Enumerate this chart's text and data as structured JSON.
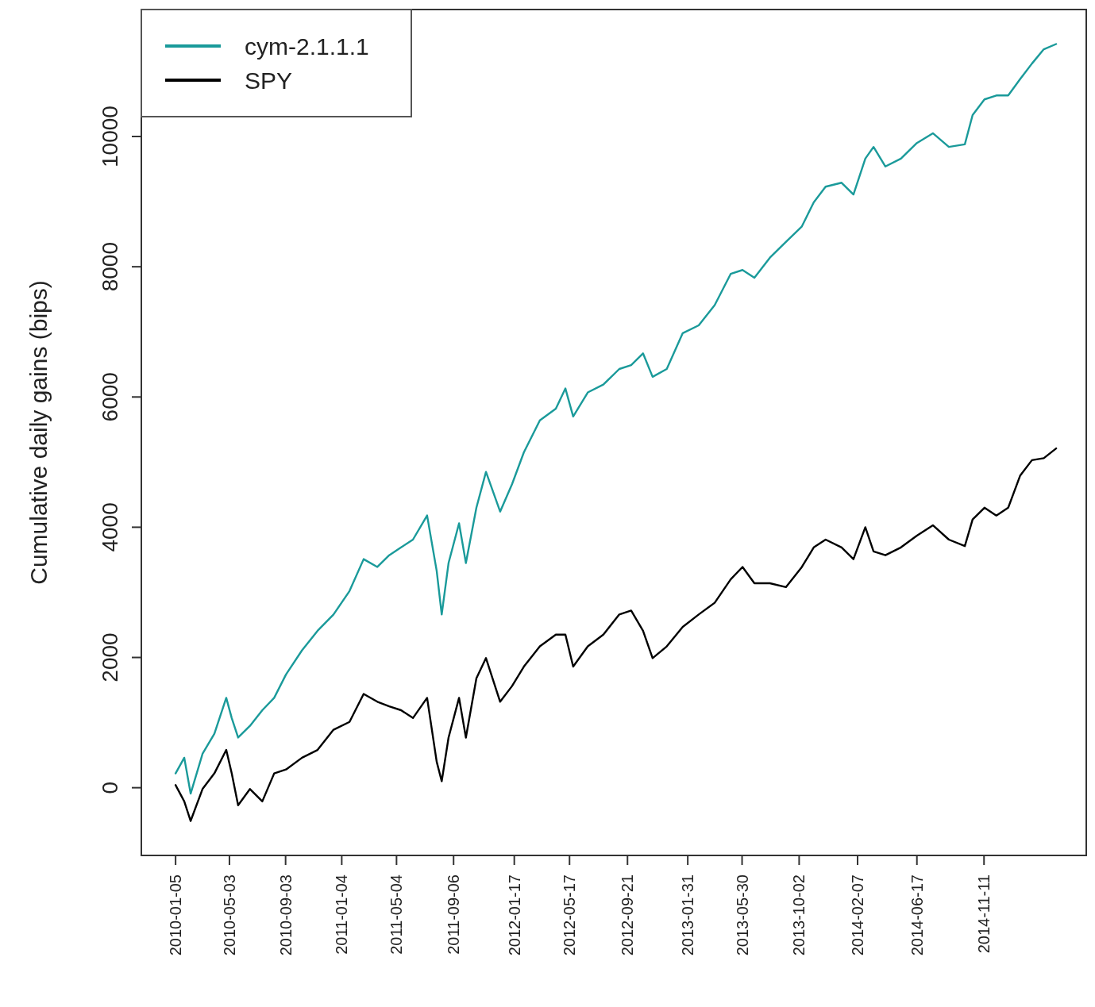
{
  "chart_data": {
    "type": "line",
    "ylabel": "Cumulative daily gains (bips)",
    "x": [
      "2010-01-05",
      "2010-01-24",
      "2010-02-07",
      "2010-03-05",
      "2010-03-31",
      "2010-04-26",
      "2010-05-08",
      "2010-05-22",
      "2010-06-17",
      "2010-07-14",
      "2010-08-09",
      "2010-09-04",
      "2010-10-09",
      "2010-11-12",
      "2010-12-17",
      "2011-01-21",
      "2011-02-21",
      "2011-03-23",
      "2011-04-18",
      "2011-05-14",
      "2011-06-09",
      "2011-07-10",
      "2011-07-31",
      "2011-08-11",
      "2011-08-26",
      "2011-09-18",
      "2011-10-03",
      "2011-10-26",
      "2011-11-16",
      "2011-12-17",
      "2012-01-12",
      "2012-02-07",
      "2012-03-13",
      "2012-04-17",
      "2012-05-08",
      "2012-05-25",
      "2012-06-26",
      "2012-07-30",
      "2012-09-03",
      "2012-09-29",
      "2012-10-25",
      "2012-11-15",
      "2012-12-16",
      "2013-01-20",
      "2013-02-24",
      "2013-03-31",
      "2013-05-05",
      "2013-05-31",
      "2013-06-26",
      "2013-07-30",
      "2013-09-03",
      "2013-10-08",
      "2013-11-03",
      "2013-11-29",
      "2014-01-03",
      "2014-01-29",
      "2014-02-24",
      "2014-03-14",
      "2014-04-09",
      "2014-05-13",
      "2014-06-17",
      "2014-07-22",
      "2014-08-26",
      "2014-09-30",
      "2014-10-17",
      "2014-11-12",
      "2014-12-08",
      "2015-01-03",
      "2015-01-29",
      "2015-02-24",
      "2015-03-22",
      "2015-04-18"
    ],
    "series": [
      {
        "name": "cym-2.1.1.1",
        "color": "#1a9a9a",
        "values": [
          220,
          460,
          -90,
          520,
          830,
          1380,
          1070,
          770,
          950,
          1190,
          1380,
          1740,
          2110,
          2410,
          2660,
          3020,
          3510,
          3390,
          3570,
          3690,
          3810,
          4180,
          3330,
          2660,
          3450,
          4060,
          3450,
          4300,
          4850,
          4240,
          4660,
          5150,
          5640,
          5820,
          6130,
          5700,
          6070,
          6190,
          6430,
          6490,
          6670,
          6310,
          6430,
          6980,
          7100,
          7410,
          7890,
          7950,
          7830,
          8140,
          8380,
          8620,
          8990,
          9230,
          9290,
          9110,
          9660,
          9840,
          9540,
          9660,
          9900,
          10050,
          9840,
          9880,
          10330,
          10570,
          10630,
          10630,
          10880,
          11120,
          11340,
          11420
        ]
      },
      {
        "name": "SPY",
        "color": "#000000",
        "values": [
          40,
          -210,
          -510,
          -20,
          220,
          580,
          220,
          -270,
          -20,
          -210,
          220,
          280,
          460,
          580,
          890,
          1010,
          1440,
          1320,
          1250,
          1190,
          1070,
          1380,
          400,
          100,
          770,
          1380,
          770,
          1680,
          1990,
          1320,
          1560,
          1860,
          2170,
          2350,
          2350,
          1860,
          2170,
          2350,
          2660,
          2720,
          2410,
          1990,
          2170,
          2470,
          2660,
          2840,
          3200,
          3390,
          3140,
          3140,
          3080,
          3390,
          3690,
          3810,
          3690,
          3510,
          4000,
          3630,
          3570,
          3690,
          3870,
          4030,
          3810,
          3710,
          4120,
          4300,
          4180,
          4300,
          4790,
          5030,
          5060,
          5210
        ]
      }
    ],
    "xlim": [
      "2009-10-22",
      "2015-06-23"
    ],
    "xticks": [
      "2010-01-05",
      "2010-05-03",
      "2010-09-03",
      "2011-01-04",
      "2011-05-04",
      "2011-09-06",
      "2012-01-17",
      "2012-05-17",
      "2012-09-21",
      "2013-01-31",
      "2013-05-30",
      "2013-10-02",
      "2014-02-07",
      "2014-06-17",
      "2014-11-11"
    ],
    "ylim": [
      -1040,
      11950
    ],
    "yticks": [
      0,
      2000,
      4000,
      6000,
      8000,
      10000
    ],
    "legend": "top left"
  }
}
